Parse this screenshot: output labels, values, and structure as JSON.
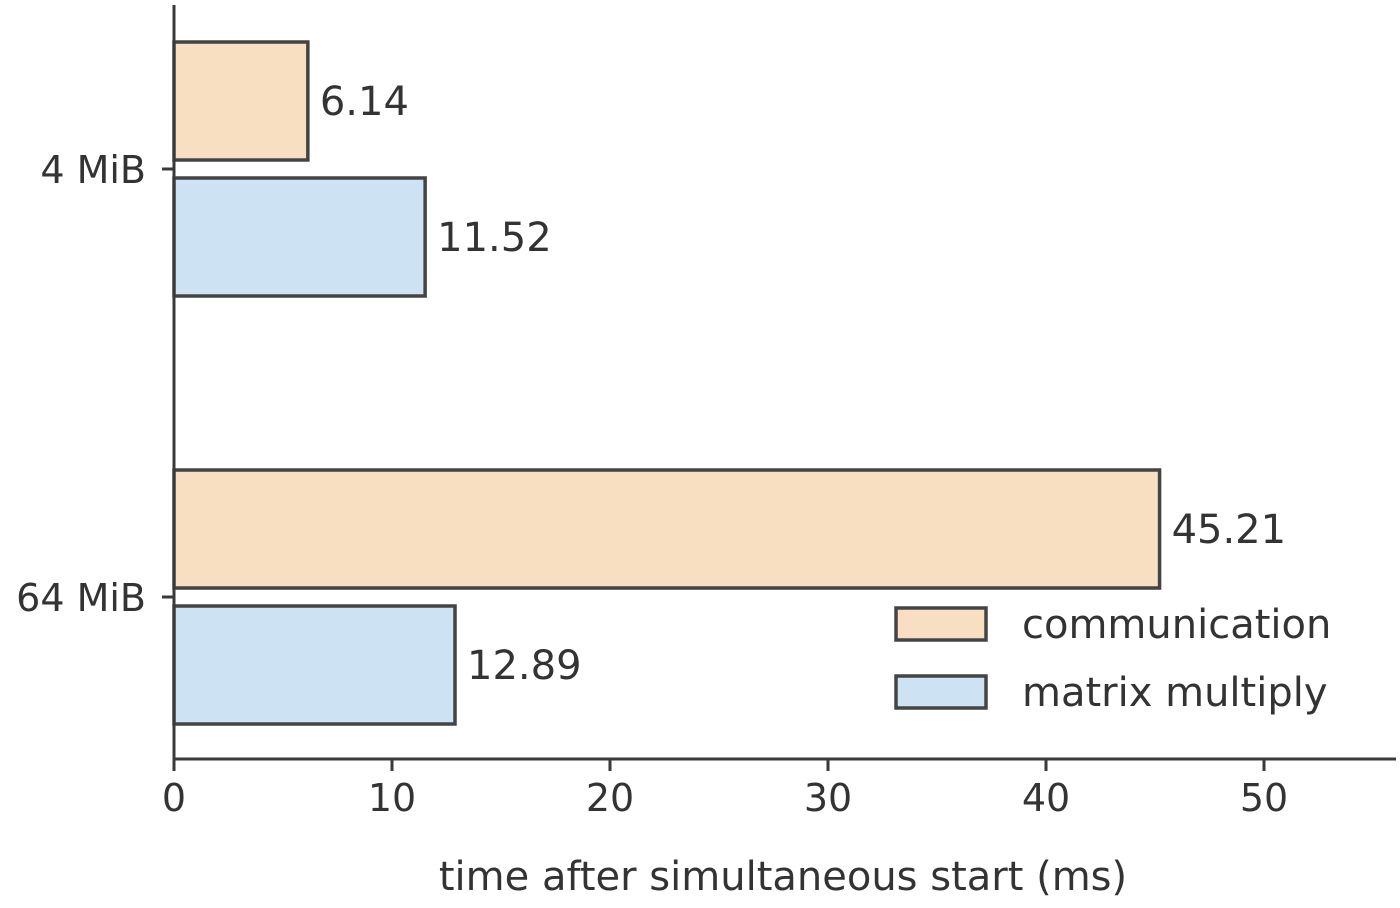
{
  "chart_data": {
    "type": "bar",
    "orientation": "horizontal",
    "categories": [
      "4 MiB",
      "64 MiB"
    ],
    "series": [
      {
        "name": "communication",
        "values": [
          6.14,
          45.21
        ],
        "color": "#f8dfc2"
      },
      {
        "name": "matrix multiply",
        "values": [
          11.52,
          12.89
        ],
        "color": "#cde2f2"
      }
    ],
    "data_labels": [
      [
        "6.14",
        "45.21"
      ],
      [
        "11.52",
        "12.89"
      ]
    ],
    "title": "",
    "xlabel": "time after simultaneous start (ms)",
    "ylabel": "",
    "xlim": [
      0,
      56
    ],
    "xticks": [
      0,
      10,
      20,
      30,
      40,
      50
    ],
    "xtick_labels": [
      "0",
      "10",
      "20",
      "30",
      "40",
      "50"
    ],
    "grid": false,
    "legend_position": "lower-right",
    "edge_color": "#444444"
  }
}
